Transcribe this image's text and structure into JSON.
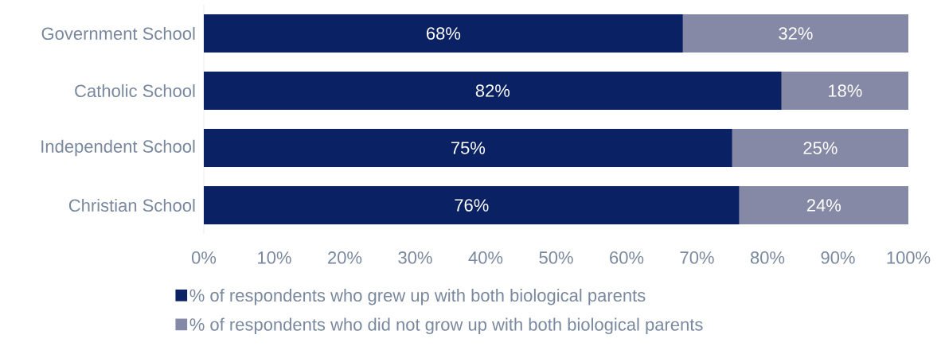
{
  "chart_data": {
    "type": "bar",
    "orientation": "horizontal",
    "stacked": true,
    "categories": [
      "Government School",
      "Catholic School",
      "Independent School",
      "Christian School"
    ],
    "series": [
      {
        "name": "% of respondents who grew up with both biological parents",
        "color": "#0a2164",
        "values": [
          68,
          82,
          75,
          76
        ],
        "value_labels": [
          "68%",
          "82%",
          "75%",
          "76%"
        ]
      },
      {
        "name": "% of respondents who did not grow up with both biological parents",
        "color": "#8689a6",
        "values": [
          32,
          18,
          25,
          24
        ],
        "value_labels": [
          "32%",
          "18%",
          "25%",
          "24%"
        ]
      }
    ],
    "xlim": [
      0,
      100
    ],
    "xticks": [
      {
        "value": 0,
        "label": "0%"
      },
      {
        "value": 10,
        "label": "10%"
      },
      {
        "value": 20,
        "label": "20%"
      },
      {
        "value": 30,
        "label": "30%"
      },
      {
        "value": 40,
        "label": "40%"
      },
      {
        "value": 50,
        "label": "50%"
      },
      {
        "value": 60,
        "label": "60%"
      },
      {
        "value": 70,
        "label": "70%"
      },
      {
        "value": 80,
        "label": "80%"
      },
      {
        "value": 90,
        "label": "90%"
      },
      {
        "value": 100,
        "label": "100%"
      }
    ],
    "grid": false,
    "legend": "bottom"
  }
}
